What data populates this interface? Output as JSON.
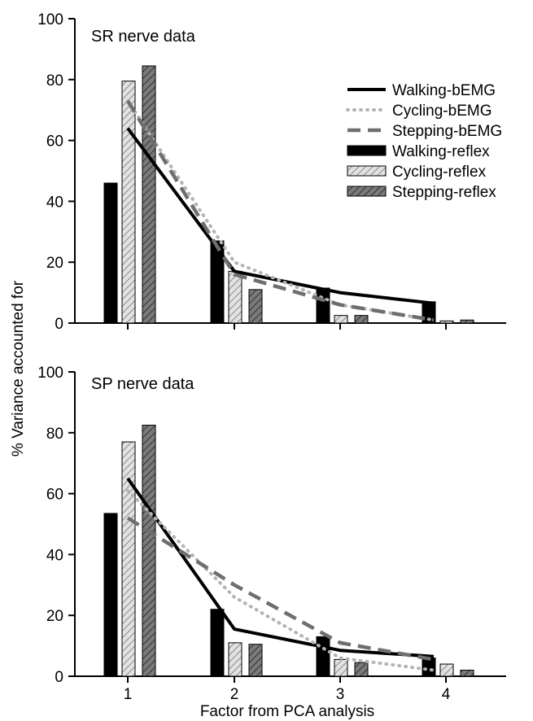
{
  "colors": {
    "walking": "#000000",
    "cycling": "#b4b4b4",
    "stepping": "#6e6e6e",
    "axis": "#000000"
  },
  "xlabel": "Factor from PCA analysis",
  "ylabel": "% Variance accounted for",
  "legend": [
    {
      "label": "Walking-bEMG",
      "kind": "line",
      "style": "solid",
      "color": "#000000"
    },
    {
      "label": "Cycling-bEMG",
      "kind": "line",
      "style": "dotted",
      "color": "#b4b4b4"
    },
    {
      "label": "Stepping-bEMG",
      "kind": "line",
      "style": "dashed",
      "color": "#6e6e6e"
    },
    {
      "label": "Walking-reflex",
      "kind": "bar",
      "style": "solid",
      "color": "#000000"
    },
    {
      "label": "Cycling-reflex",
      "kind": "bar",
      "style": "light-hatch",
      "color": "#b4b4b4"
    },
    {
      "label": "Stepping-reflex",
      "kind": "bar",
      "style": "dark-hatch",
      "color": "#6e6e6e"
    }
  ],
  "chart_data": [
    {
      "type": "bar",
      "title": "SR nerve data",
      "categories": [
        "1",
        "2",
        "3",
        "4"
      ],
      "ylim": [
        0,
        100
      ],
      "yticks": [
        "0",
        "20",
        "40",
        "60",
        "80",
        "100"
      ],
      "legend_position": "top-right",
      "series": [
        {
          "name": "Walking-reflex",
          "kind": "bar",
          "values": [
            46,
            27,
            11.5,
            7
          ]
        },
        {
          "name": "Cycling-reflex",
          "kind": "bar",
          "values": [
            79.5,
            17,
            2.5,
            0.7
          ]
        },
        {
          "name": "Stepping-reflex",
          "kind": "bar",
          "values": [
            84.5,
            11,
            2.5,
            1
          ]
        },
        {
          "name": "Walking-bEMG",
          "kind": "line",
          "values": [
            64,
            17,
            10,
            6.5
          ]
        },
        {
          "name": "Cycling-bEMG",
          "kind": "line",
          "values": [
            73,
            20,
            6,
            1
          ]
        },
        {
          "name": "Stepping-bEMG",
          "kind": "line",
          "values": [
            73,
            16,
            6,
            1
          ]
        }
      ]
    },
    {
      "type": "bar",
      "title": "SP nerve data",
      "categories": [
        "1",
        "2",
        "3",
        "4"
      ],
      "ylim": [
        0,
        100
      ],
      "yticks": [
        "0",
        "20",
        "40",
        "60",
        "80",
        "100"
      ],
      "series": [
        {
          "name": "Walking-reflex",
          "kind": "bar",
          "values": [
            53.5,
            22,
            13,
            6
          ]
        },
        {
          "name": "Cycling-reflex",
          "kind": "bar",
          "values": [
            77,
            11,
            5.5,
            4
          ]
        },
        {
          "name": "Stepping-reflex",
          "kind": "bar",
          "values": [
            82.5,
            10.5,
            4.5,
            2
          ]
        },
        {
          "name": "Walking-bEMG",
          "kind": "line",
          "values": [
            65,
            15.5,
            8.5,
            6.5
          ]
        },
        {
          "name": "Cycling-bEMG",
          "kind": "line",
          "values": [
            61,
            26,
            6,
            2
          ]
        },
        {
          "name": "Stepping-bEMG",
          "kind": "line",
          "values": [
            52,
            30,
            11,
            5.5
          ]
        }
      ]
    }
  ]
}
